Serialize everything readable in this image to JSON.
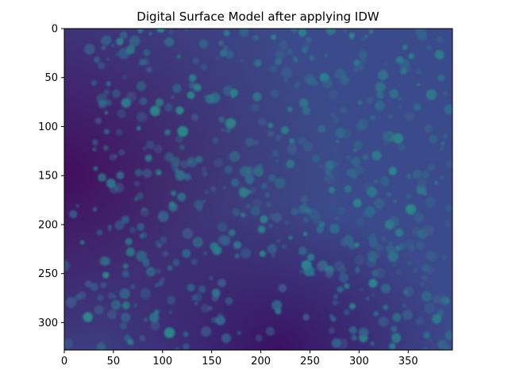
{
  "chart_data": {
    "type": "heatmap",
    "title": "Digital Surface Model after applying IDW",
    "xlabel": "",
    "ylabel": "",
    "colormap": "viridis",
    "image_width": 395,
    "image_height": 328,
    "xlim": [
      0,
      395
    ],
    "ylim": [
      328,
      0
    ],
    "y_inverted": true,
    "x_ticks": [
      0,
      50,
      100,
      150,
      200,
      250,
      300,
      350
    ],
    "y_ticks": [
      0,
      50,
      100,
      150,
      200,
      250,
      300
    ],
    "grid": false,
    "colors": {
      "low": "#440154",
      "mid_low": "#3b4b8a",
      "mid": "#2f6c8e",
      "high": "#2a8c8b",
      "background": "#ffffff",
      "axis": "#000000"
    }
  }
}
